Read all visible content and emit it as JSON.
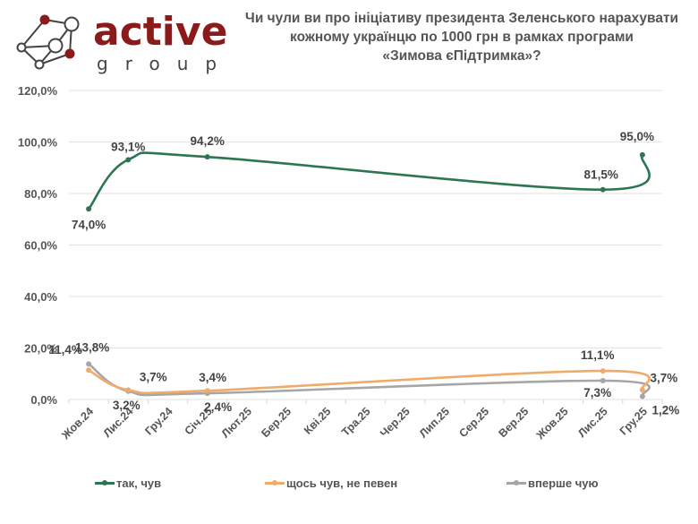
{
  "logo": {
    "word": "active",
    "sub": "group",
    "accent_color": "#8b1a1a"
  },
  "title_lines": [
    "Чи чули ви про ініціативу президента Зеленського нарахувати",
    "кожному українцю по 1000 грн в рамках програми",
    "«Зимова єПідтримка»?"
  ],
  "chart_data": {
    "type": "line",
    "title": "Чи чули ви про ініціативу президента Зеленського нарахувати кожному українцю по 1000 грн в рамках програми «Зимова єПідтримка»?",
    "xlabel": "",
    "ylabel": "",
    "ylim": [
      0,
      120
    ],
    "yticks": [
      0,
      20,
      40,
      60,
      80,
      100,
      120
    ],
    "ytick_labels": [
      "0,0%",
      "20,0%",
      "40,0%",
      "60,0%",
      "80,0%",
      "100,0%",
      "120,0%"
    ],
    "grid": true,
    "legend_position": "bottom",
    "categories": [
      "Жов.24",
      "Лис.24",
      "Гру.24",
      "Січ.25",
      "Лют.25",
      "Бер.25",
      "Кві.25",
      "Тра.25",
      "Чер.25",
      "Лип.25",
      "Сер.25",
      "Вер.25",
      "Жов.25",
      "Лис.25",
      "Гру.25"
    ],
    "series": [
      {
        "name": "так, чув",
        "color": "#2e7552",
        "points": [
          {
            "category": "Жов.24",
            "value": 74.0,
            "label": "74,0%"
          },
          {
            "category": "Лис.24",
            "value": 93.1,
            "label": "93,1%"
          },
          {
            "category": "Січ.25",
            "value": 94.2,
            "label": "94,2%"
          },
          {
            "category": "Лис.25",
            "value": 81.5,
            "label": "81,5%"
          },
          {
            "category": "Гру.25",
            "value": 95.0,
            "label": "95,0%"
          }
        ]
      },
      {
        "name": "щось чув, не певен",
        "color": "#f0aa6a",
        "points": [
          {
            "category": "Жов.24",
            "value": 11.4,
            "label": "11,4%"
          },
          {
            "category": "Лис.24",
            "value": 3.7,
            "label": "3,7%"
          },
          {
            "category": "Січ.25",
            "value": 3.4,
            "label": "3,4%"
          },
          {
            "category": "Лис.25",
            "value": 11.1,
            "label": "11,1%"
          },
          {
            "category": "Гру.25",
            "value": 3.7,
            "label": "3,7%"
          }
        ]
      },
      {
        "name": "вперше чую",
        "color": "#a6a6a6",
        "points": [
          {
            "category": "Жов.24",
            "value": 13.8,
            "label": "13,8%"
          },
          {
            "category": "Лис.24",
            "value": 3.2,
            "label": "3,2%"
          },
          {
            "category": "Січ.25",
            "value": 2.4,
            "label": "2,4%"
          },
          {
            "category": "Лис.25",
            "value": 7.3,
            "label": "7,3%"
          },
          {
            "category": "Гру.25",
            "value": 1.2,
            "label": "1,2%"
          }
        ]
      }
    ]
  },
  "legend": [
    {
      "label": "так, чув",
      "color": "#2e7552"
    },
    {
      "label": "щось чув, не певен",
      "color": "#f0aa6a"
    },
    {
      "label": "вперше чую",
      "color": "#a6a6a6"
    }
  ]
}
